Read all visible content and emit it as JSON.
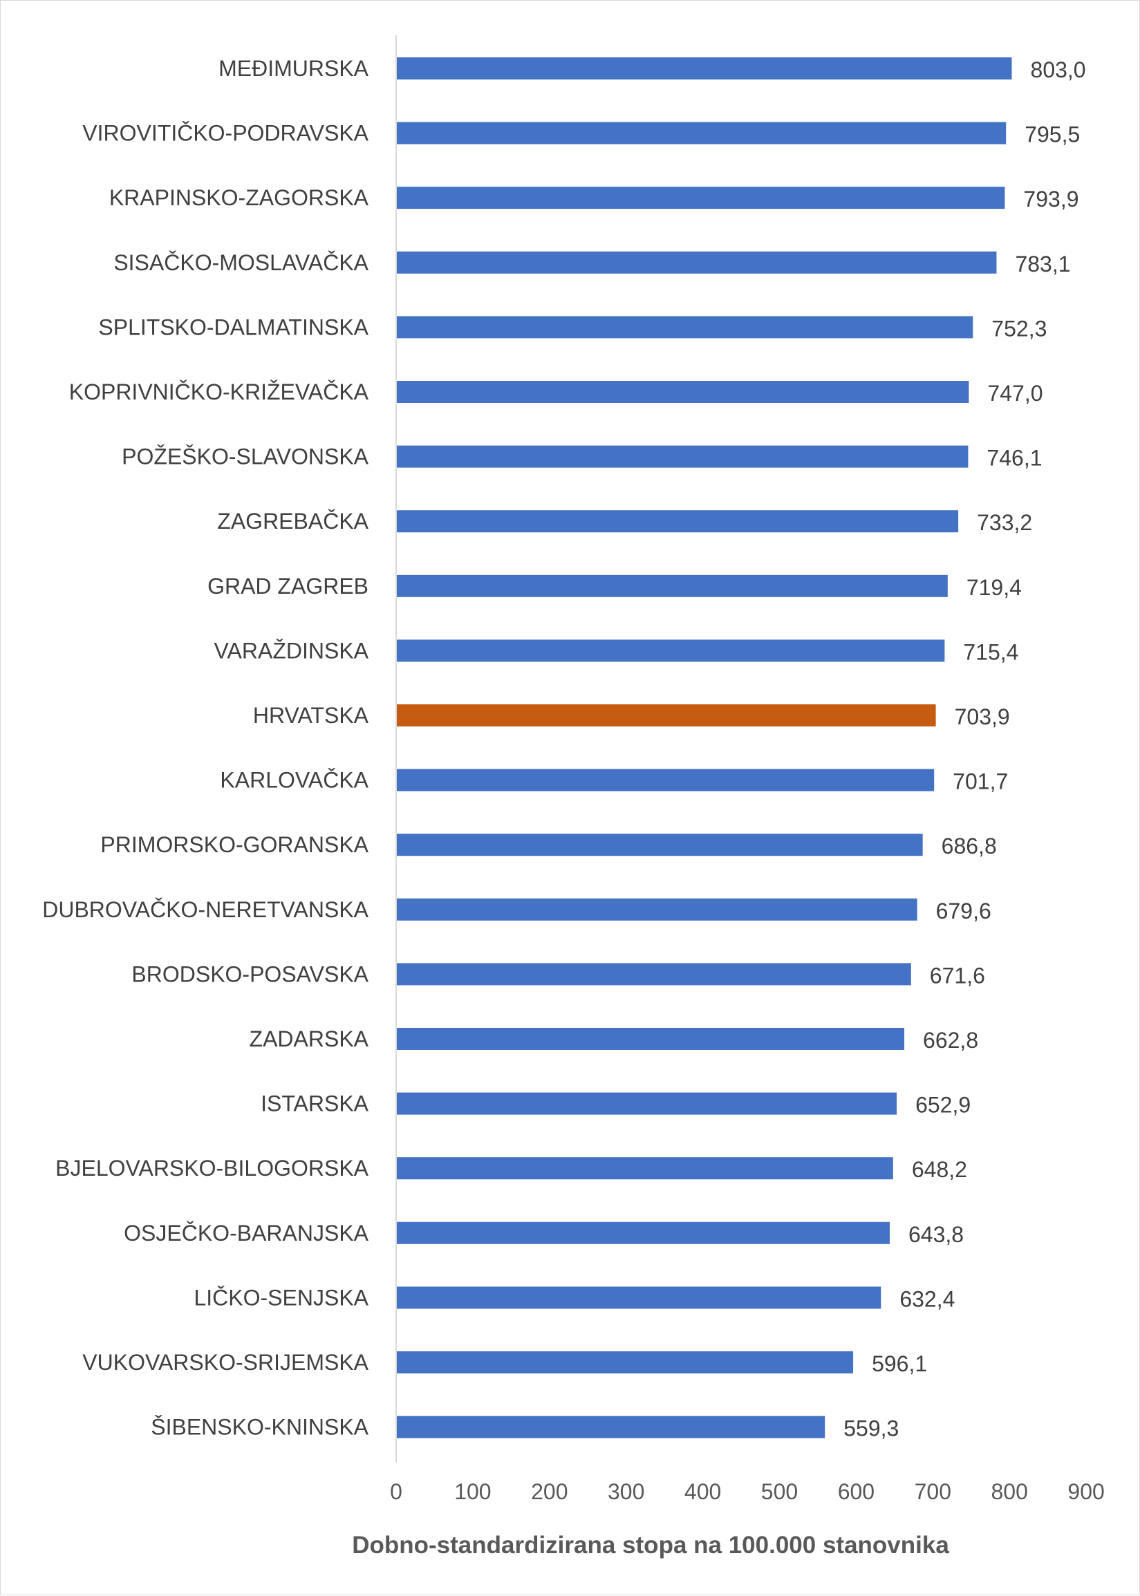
{
  "chart_data": {
    "type": "bar",
    "orientation": "horizontal",
    "categories": [
      "MEĐIMURSKA",
      "VIROVITIČKO-PODRAVSKA",
      "KRAPINSKO-ZAGORSKA",
      "SISAČKO-MOSLAVAČKA",
      "SPLITSKO-DALMATINSKA",
      "KOPRIVNIČKO-KRIŽEVAČKA",
      "POŽEŠKO-SLAVONSKA",
      "ZAGREBAČKA",
      "GRAD ZAGREB",
      "VARAŽDINSKA",
      "HRVATSKA",
      "KARLOVAČKA",
      "PRIMORSKO-GORANSKA",
      "DUBROVAČKO-NERETVANSKA",
      "BRODSKO-POSAVSKA",
      "ZADARSKA",
      "ISTARSKA",
      "BJELOVARSKO-BILOGORSKA",
      "OSJEČKO-BARANJSKA",
      "LIČKO-SENJSKA",
      "VUKOVARSKO-SRIJEMSKA",
      "ŠIBENSKO-KNINSKA"
    ],
    "values": [
      803.0,
      795.5,
      793.9,
      783.1,
      752.3,
      747.0,
      746.1,
      733.2,
      719.4,
      715.4,
      703.9,
      701.7,
      686.8,
      679.6,
      671.6,
      662.8,
      652.9,
      648.2,
      643.8,
      632.4,
      596.1,
      559.3
    ],
    "value_labels": [
      "803,0",
      "795,5",
      "793,9",
      "783,1",
      "752,3",
      "747,0",
      "746,1",
      "733,2",
      "719,4",
      "715,4",
      "703,9",
      "701,7",
      "686,8",
      "679,6",
      "671,6",
      "662,8",
      "652,9",
      "648,2",
      "643,8",
      "632,4",
      "596,1",
      "559,3"
    ],
    "highlight_category": "HRVATSKA",
    "xlim": [
      0,
      900
    ],
    "xticks": [
      0,
      100,
      200,
      300,
      400,
      500,
      600,
      700,
      800,
      900
    ],
    "xlabel": "Dobno-standardizirana stopa na 100.000 stanovnika",
    "ylabel": "",
    "title": "",
    "grid": false,
    "legend": "none",
    "colors": {
      "bar": "#4472C4",
      "highlight": "#C55A11",
      "axis_line": "#d9d9d9",
      "text": "#404040"
    }
  }
}
